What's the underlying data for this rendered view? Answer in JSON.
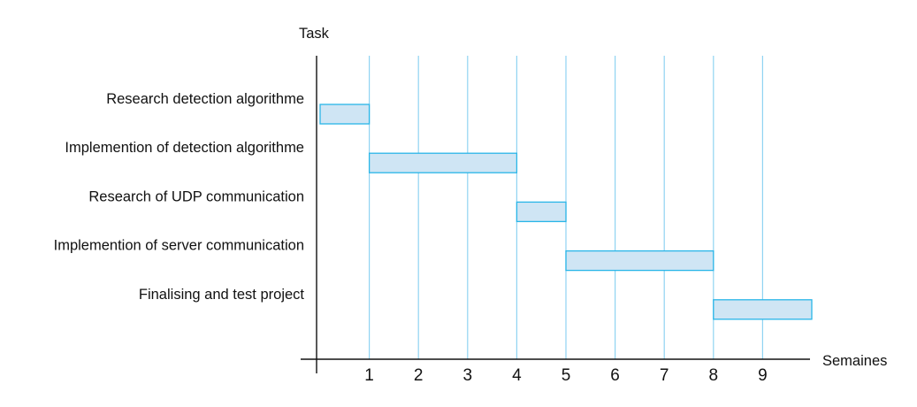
{
  "chart_data": {
    "type": "gantt",
    "ylabel": "Task",
    "xlabel": "Semaines",
    "xlim": [
      0,
      10
    ],
    "x_ticks": [
      1,
      2,
      3,
      4,
      5,
      6,
      7,
      8,
      9
    ],
    "grid": "vertical",
    "tasks": [
      {
        "label": "Research detection algorithme",
        "start": 0,
        "end": 1
      },
      {
        "label": "Implemention of detection algorithme",
        "start": 1,
        "end": 4
      },
      {
        "label": "Research of  UDP communication",
        "start": 4,
        "end": 5
      },
      {
        "label": "Implemention of server communication",
        "start": 5,
        "end": 8
      },
      {
        "label": "Finalising and test project",
        "start": 8,
        "end": 10
      }
    ],
    "colors": {
      "bar_fill": "#cfe5f4",
      "bar_stroke": "#29b6e8",
      "grid": "#8fd3f2",
      "axis": "#111111"
    }
  }
}
